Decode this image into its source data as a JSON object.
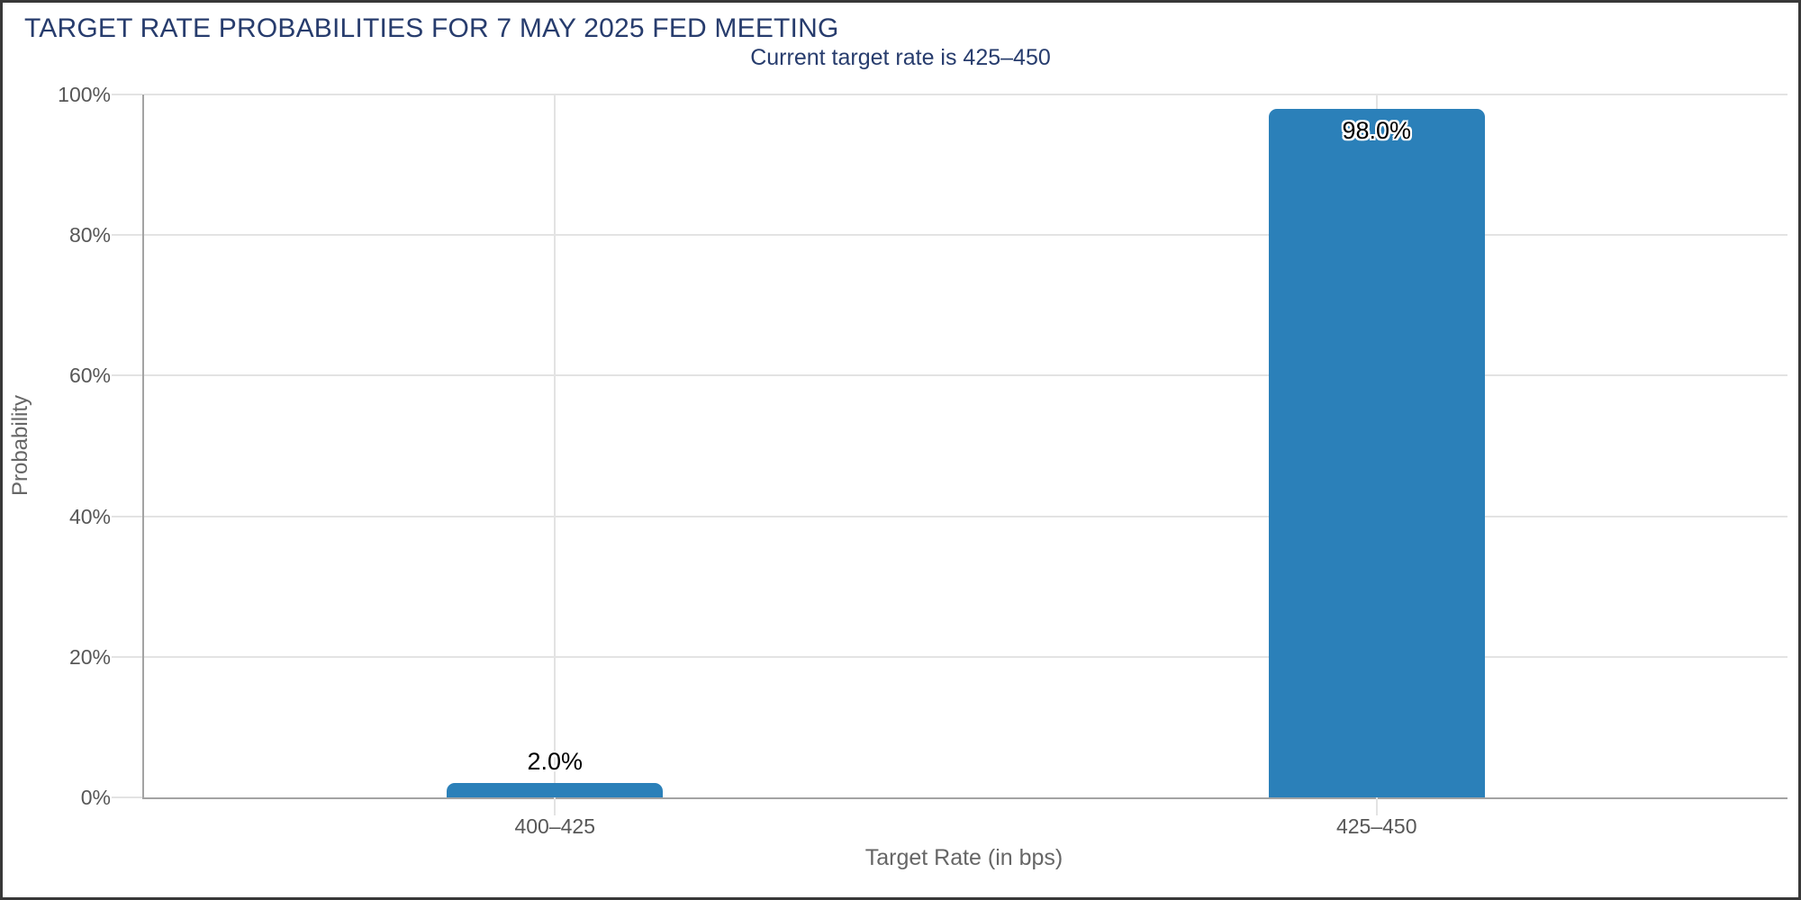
{
  "chart_data": {
    "type": "bar",
    "title": "TARGET RATE PROBABILITIES FOR 7 MAY 2025 FED MEETING",
    "subtitle": "Current target rate is 425–450",
    "categories": [
      "400–425",
      "425–450"
    ],
    "values": [
      2.0,
      98.0
    ],
    "value_labels": [
      "2.0%",
      "98.0%"
    ],
    "xlabel": "Target Rate (in bps)",
    "ylabel": "Probability",
    "ylim": [
      0,
      100
    ],
    "y_ticks": [
      {
        "value": 0,
        "label": "0%"
      },
      {
        "value": 20,
        "label": "20%"
      },
      {
        "value": 40,
        "label": "40%"
      },
      {
        "value": 60,
        "label": "60%"
      },
      {
        "value": 80,
        "label": "80%"
      },
      {
        "value": 100,
        "label": "100%"
      }
    ],
    "grid": "on",
    "legend": "none"
  },
  "colors": {
    "bar": "#2b80b9",
    "title_text": "#273c6d",
    "tick_text": "#575757",
    "axis_title_text": "#666666",
    "grid_line": "#e3e3e3",
    "axis_line": "#a3a3a3",
    "value_text": "#000000",
    "value_halo": "#ffffff",
    "background": "#ffffff",
    "frame_border": "#383838"
  }
}
